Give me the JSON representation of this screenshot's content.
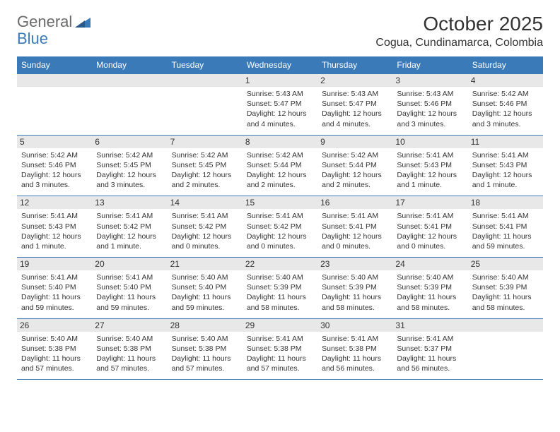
{
  "logo": {
    "text1": "General",
    "text2": "Blue"
  },
  "header": {
    "title": "October 2025",
    "location": "Cogua, Cundinamarca, Colombia"
  },
  "colors": {
    "header_bg": "#3a7ab8",
    "header_fg": "#ffffff",
    "daynum_bg": "#e8e8e8",
    "border": "#3a7ab8",
    "text": "#333333"
  },
  "days_of_week": [
    "Sunday",
    "Monday",
    "Tuesday",
    "Wednesday",
    "Thursday",
    "Friday",
    "Saturday"
  ],
  "weeks": [
    [
      {
        "day": "",
        "sunrise": "",
        "sunset": "",
        "daylight": ""
      },
      {
        "day": "",
        "sunrise": "",
        "sunset": "",
        "daylight": ""
      },
      {
        "day": "",
        "sunrise": "",
        "sunset": "",
        "daylight": ""
      },
      {
        "day": "1",
        "sunrise": "Sunrise: 5:43 AM",
        "sunset": "Sunset: 5:47 PM",
        "daylight": "Daylight: 12 hours and 4 minutes."
      },
      {
        "day": "2",
        "sunrise": "Sunrise: 5:43 AM",
        "sunset": "Sunset: 5:47 PM",
        "daylight": "Daylight: 12 hours and 4 minutes."
      },
      {
        "day": "3",
        "sunrise": "Sunrise: 5:43 AM",
        "sunset": "Sunset: 5:46 PM",
        "daylight": "Daylight: 12 hours and 3 minutes."
      },
      {
        "day": "4",
        "sunrise": "Sunrise: 5:42 AM",
        "sunset": "Sunset: 5:46 PM",
        "daylight": "Daylight: 12 hours and 3 minutes."
      }
    ],
    [
      {
        "day": "5",
        "sunrise": "Sunrise: 5:42 AM",
        "sunset": "Sunset: 5:46 PM",
        "daylight": "Daylight: 12 hours and 3 minutes."
      },
      {
        "day": "6",
        "sunrise": "Sunrise: 5:42 AM",
        "sunset": "Sunset: 5:45 PM",
        "daylight": "Daylight: 12 hours and 3 minutes."
      },
      {
        "day": "7",
        "sunrise": "Sunrise: 5:42 AM",
        "sunset": "Sunset: 5:45 PM",
        "daylight": "Daylight: 12 hours and 2 minutes."
      },
      {
        "day": "8",
        "sunrise": "Sunrise: 5:42 AM",
        "sunset": "Sunset: 5:44 PM",
        "daylight": "Daylight: 12 hours and 2 minutes."
      },
      {
        "day": "9",
        "sunrise": "Sunrise: 5:42 AM",
        "sunset": "Sunset: 5:44 PM",
        "daylight": "Daylight: 12 hours and 2 minutes."
      },
      {
        "day": "10",
        "sunrise": "Sunrise: 5:41 AM",
        "sunset": "Sunset: 5:43 PM",
        "daylight": "Daylight: 12 hours and 1 minute."
      },
      {
        "day": "11",
        "sunrise": "Sunrise: 5:41 AM",
        "sunset": "Sunset: 5:43 PM",
        "daylight": "Daylight: 12 hours and 1 minute."
      }
    ],
    [
      {
        "day": "12",
        "sunrise": "Sunrise: 5:41 AM",
        "sunset": "Sunset: 5:43 PM",
        "daylight": "Daylight: 12 hours and 1 minute."
      },
      {
        "day": "13",
        "sunrise": "Sunrise: 5:41 AM",
        "sunset": "Sunset: 5:42 PM",
        "daylight": "Daylight: 12 hours and 1 minute."
      },
      {
        "day": "14",
        "sunrise": "Sunrise: 5:41 AM",
        "sunset": "Sunset: 5:42 PM",
        "daylight": "Daylight: 12 hours and 0 minutes."
      },
      {
        "day": "15",
        "sunrise": "Sunrise: 5:41 AM",
        "sunset": "Sunset: 5:42 PM",
        "daylight": "Daylight: 12 hours and 0 minutes."
      },
      {
        "day": "16",
        "sunrise": "Sunrise: 5:41 AM",
        "sunset": "Sunset: 5:41 PM",
        "daylight": "Daylight: 12 hours and 0 minutes."
      },
      {
        "day": "17",
        "sunrise": "Sunrise: 5:41 AM",
        "sunset": "Sunset: 5:41 PM",
        "daylight": "Daylight: 12 hours and 0 minutes."
      },
      {
        "day": "18",
        "sunrise": "Sunrise: 5:41 AM",
        "sunset": "Sunset: 5:41 PM",
        "daylight": "Daylight: 11 hours and 59 minutes."
      }
    ],
    [
      {
        "day": "19",
        "sunrise": "Sunrise: 5:41 AM",
        "sunset": "Sunset: 5:40 PM",
        "daylight": "Daylight: 11 hours and 59 minutes."
      },
      {
        "day": "20",
        "sunrise": "Sunrise: 5:41 AM",
        "sunset": "Sunset: 5:40 PM",
        "daylight": "Daylight: 11 hours and 59 minutes."
      },
      {
        "day": "21",
        "sunrise": "Sunrise: 5:40 AM",
        "sunset": "Sunset: 5:40 PM",
        "daylight": "Daylight: 11 hours and 59 minutes."
      },
      {
        "day": "22",
        "sunrise": "Sunrise: 5:40 AM",
        "sunset": "Sunset: 5:39 PM",
        "daylight": "Daylight: 11 hours and 58 minutes."
      },
      {
        "day": "23",
        "sunrise": "Sunrise: 5:40 AM",
        "sunset": "Sunset: 5:39 PM",
        "daylight": "Daylight: 11 hours and 58 minutes."
      },
      {
        "day": "24",
        "sunrise": "Sunrise: 5:40 AM",
        "sunset": "Sunset: 5:39 PM",
        "daylight": "Daylight: 11 hours and 58 minutes."
      },
      {
        "day": "25",
        "sunrise": "Sunrise: 5:40 AM",
        "sunset": "Sunset: 5:39 PM",
        "daylight": "Daylight: 11 hours and 58 minutes."
      }
    ],
    [
      {
        "day": "26",
        "sunrise": "Sunrise: 5:40 AM",
        "sunset": "Sunset: 5:38 PM",
        "daylight": "Daylight: 11 hours and 57 minutes."
      },
      {
        "day": "27",
        "sunrise": "Sunrise: 5:40 AM",
        "sunset": "Sunset: 5:38 PM",
        "daylight": "Daylight: 11 hours and 57 minutes."
      },
      {
        "day": "28",
        "sunrise": "Sunrise: 5:40 AM",
        "sunset": "Sunset: 5:38 PM",
        "daylight": "Daylight: 11 hours and 57 minutes."
      },
      {
        "day": "29",
        "sunrise": "Sunrise: 5:41 AM",
        "sunset": "Sunset: 5:38 PM",
        "daylight": "Daylight: 11 hours and 57 minutes."
      },
      {
        "day": "30",
        "sunrise": "Sunrise: 5:41 AM",
        "sunset": "Sunset: 5:38 PM",
        "daylight": "Daylight: 11 hours and 56 minutes."
      },
      {
        "day": "31",
        "sunrise": "Sunrise: 5:41 AM",
        "sunset": "Sunset: 5:37 PM",
        "daylight": "Daylight: 11 hours and 56 minutes."
      },
      {
        "day": "",
        "sunrise": "",
        "sunset": "",
        "daylight": ""
      }
    ]
  ]
}
